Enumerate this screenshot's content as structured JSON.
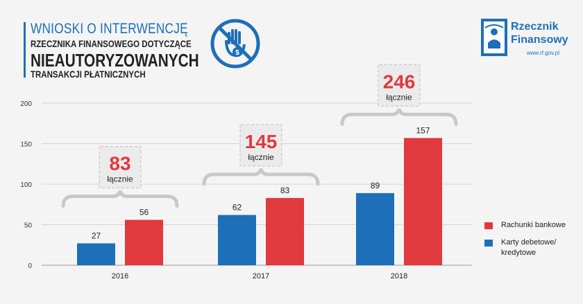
{
  "header": {
    "line1": "WNIOSKI O INTERWENCJĘ",
    "line2": "RZECZNIKA FINANSOWEGO DOTYCZĄCE",
    "line3": "NIEAUTORYZOWANYCH",
    "line4": "TRANSAKCJI PŁATNICZNYCH"
  },
  "logo": {
    "name_line1": "Rzecznik",
    "name_line2": "Finansowy",
    "url": "www.rf.gov.pl"
  },
  "colors": {
    "blue": "#1d6fb8",
    "red": "#e0393e",
    "total_red": "#e0393e"
  },
  "chart_data": {
    "type": "bar",
    "categories": [
      "2016",
      "2017",
      "2018"
    ],
    "series": [
      {
        "name": "Karty debetowe/ kredytowe",
        "values": [
          27,
          62,
          89
        ]
      },
      {
        "name": "Rachunki bankowe",
        "values": [
          56,
          83,
          157
        ]
      }
    ],
    "totals": [
      {
        "value": "83",
        "label": "łącznie"
      },
      {
        "value": "145",
        "label": "łącznie"
      },
      {
        "value": "246",
        "label": "łącznie"
      }
    ],
    "y_ticks": [
      "0",
      "50",
      "100",
      "150",
      "200"
    ],
    "ylim": [
      0,
      200
    ],
    "grid": true,
    "legend_position": "right"
  },
  "legend": {
    "item1_label": "Rachunki bankowe",
    "item2_line1": "Karty debetowe/",
    "item2_line2": "kredytowe"
  }
}
